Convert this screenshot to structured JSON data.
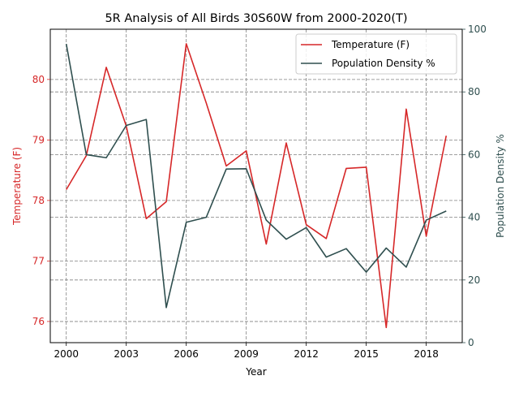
{
  "chart_data": {
    "type": "line",
    "title": "5R Analysis of All Birds 30S60W from 2000-2020(T)",
    "xlabel": "Year",
    "ylabel_left": "Temperature (F)",
    "ylabel_right": "Population Density %",
    "x_ticks": [
      "2000",
      "2003",
      "2006",
      "2009",
      "2012",
      "2015",
      "2018"
    ],
    "y_left_ticks": [
      "76",
      "77",
      "78",
      "79",
      "80"
    ],
    "y_right_ticks": [
      "0",
      "20",
      "40",
      "60",
      "80",
      "100"
    ],
    "xlim": [
      1999.2,
      2019.8
    ],
    "ylim_left": [
      75.65,
      80.83
    ],
    "ylim_right": [
      0,
      100
    ],
    "grid": true,
    "legend_position": "top-right",
    "x": [
      2000,
      2001,
      2002,
      2003,
      2004,
      2005,
      2006,
      2007,
      2008,
      2009,
      2010,
      2011,
      2012,
      2013,
      2014,
      2015,
      2016,
      2017,
      2018,
      2019
    ],
    "series": [
      {
        "name": "Temperature (F)",
        "axis": "left",
        "color": "#d62728",
        "values": [
          78.18,
          78.74,
          80.2,
          79.23,
          77.7,
          77.98,
          80.59,
          79.61,
          78.57,
          78.82,
          77.28,
          78.95,
          77.6,
          77.37,
          78.53,
          78.55,
          75.9,
          79.51,
          77.41,
          79.07
        ]
      },
      {
        "name": "Population Density %",
        "axis": "right",
        "color": "#2f4f4f",
        "values": [
          95.3,
          60.0,
          59.0,
          69.3,
          71.2,
          11.2,
          38.4,
          40.0,
          55.4,
          55.5,
          39.1,
          33.0,
          36.7,
          27.3,
          30.0,
          22.5,
          30.2,
          24.1,
          39.1,
          42.0
        ]
      }
    ]
  }
}
